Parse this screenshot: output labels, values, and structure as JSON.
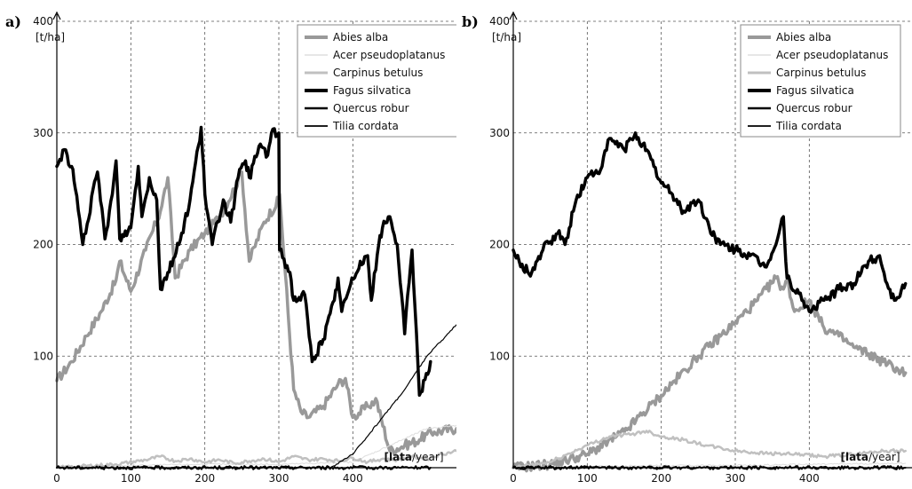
{
  "chart_data": [
    {
      "type": "line",
      "panel_label": "a)",
      "ylabel": "[t/ha]",
      "xlabel_bold": "[lata",
      "xlabel_rest": "/year]",
      "xlim": [
        0,
        540
      ],
      "ylim": [
        0,
        400
      ],
      "xticks": [
        0,
        100,
        200,
        300,
        400
      ],
      "yticks": [
        100,
        200,
        300,
        400
      ],
      "grid": true,
      "legend_position": "top-right",
      "series": [
        {
          "name": "Abies alba",
          "color": "#999999",
          "width": 3.5,
          "x": [
            0,
            20,
            40,
            60,
            80,
            85,
            100,
            120,
            140,
            150,
            160,
            180,
            200,
            220,
            240,
            250,
            260,
            280,
            300,
            301,
            320,
            330,
            340,
            360,
            380,
            390,
            400,
            420,
            430,
            431,
            450,
            470,
            490,
            500,
            510,
            540
          ],
          "y": [
            78,
            95,
            118,
            140,
            168,
            185,
            158,
            195,
            230,
            260,
            170,
            195,
            210,
            225,
            250,
            265,
            185,
            220,
            240,
            245,
            70,
            50,
            45,
            55,
            75,
            80,
            45,
            55,
            60,
            62,
            15,
            20,
            25,
            30,
            32,
            35
          ]
        },
        {
          "name": "Acer pseudoplatanus",
          "color": "#dddddd",
          "width": 1,
          "x": [
            0,
            100,
            200,
            300,
            400,
            450,
            500,
            540
          ],
          "y": [
            0,
            2,
            3,
            3,
            5,
            20,
            35,
            38
          ]
        },
        {
          "name": "Carpinus betulus",
          "color": "#c0c0c0",
          "width": 2.5,
          "x": [
            0,
            80,
            120,
            140,
            160,
            180,
            200,
            220,
            240,
            260,
            280,
            300,
            320,
            340,
            360,
            380,
            400,
            420,
            440,
            460,
            480,
            500,
            520,
            540
          ],
          "y": [
            0,
            3,
            7,
            10,
            6,
            8,
            5,
            7,
            4,
            6,
            8,
            5,
            10,
            7,
            8,
            6,
            9,
            5,
            8,
            7,
            10,
            8,
            12,
            15
          ]
        },
        {
          "name": "Fagus silvatica",
          "color": "#000000",
          "width": 3.5,
          "x": [
            0,
            10,
            20,
            25,
            35,
            55,
            65,
            75,
            80,
            85,
            100,
            110,
            115,
            125,
            135,
            140,
            150,
            165,
            180,
            195,
            200,
            210,
            225,
            235,
            245,
            255,
            260,
            275,
            285,
            290,
            300,
            301,
            315,
            320,
            335,
            345,
            360,
            375,
            380,
            385,
            395,
            410,
            420,
            425,
            435,
            440,
            450,
            460,
            470,
            480,
            490,
            505
          ],
          "y": [
            270,
            285,
            270,
            250,
            200,
            265,
            205,
            245,
            275,
            205,
            215,
            270,
            225,
            260,
            240,
            160,
            175,
            200,
            240,
            305,
            245,
            200,
            240,
            220,
            260,
            275,
            260,
            290,
            280,
            300,
            300,
            195,
            175,
            150,
            155,
            95,
            115,
            150,
            170,
            140,
            160,
            185,
            190,
            150,
            200,
            215,
            225,
            200,
            120,
            195,
            65,
            95
          ]
        },
        {
          "name": "Quercus robur",
          "color": "#000000",
          "width": 2,
          "x": [
            0,
            505
          ],
          "y": [
            0,
            0
          ]
        },
        {
          "name": "Tilia cordata",
          "color": "#000000",
          "width": 1.2,
          "x": [
            0,
            370,
            400,
            440,
            470,
            500,
            540
          ],
          "y": [
            0,
            0,
            12,
            45,
            70,
            100,
            128
          ]
        }
      ]
    },
    {
      "type": "line",
      "panel_label": "b)",
      "ylabel": "[t/ha]",
      "xlabel_bold": "[lata",
      "xlabel_rest": "/year]",
      "xlim": [
        0,
        540
      ],
      "ylim": [
        0,
        400
      ],
      "xticks": [
        0,
        100,
        200,
        300,
        400
      ],
      "yticks": [
        100,
        200,
        300,
        400
      ],
      "grid": true,
      "legend_position": "top-right",
      "series": [
        {
          "name": "Abies alba",
          "color": "#999999",
          "width": 3.5,
          "x": [
            0,
            50,
            100,
            150,
            200,
            250,
            300,
            330,
            355,
            365,
            370,
            380,
            400,
            420,
            440,
            460,
            480,
            500,
            520,
            530
          ],
          "y": [
            0,
            3,
            12,
            32,
            65,
            100,
            130,
            150,
            170,
            160,
            168,
            140,
            150,
            125,
            118,
            108,
            102,
            95,
            88,
            85
          ]
        },
        {
          "name": "Acer pseudoplatanus",
          "color": "#dddddd",
          "width": 1,
          "x": [
            0,
            100,
            200,
            300,
            400,
            530
          ],
          "y": [
            0,
            1,
            2,
            2,
            3,
            4
          ]
        },
        {
          "name": "Carpinus betulus",
          "color": "#c0c0c0",
          "width": 2.5,
          "x": [
            0,
            50,
            100,
            130,
            160,
            180,
            200,
            230,
            260,
            300,
            340,
            380,
            420,
            460,
            500,
            530
          ],
          "y": [
            0,
            5,
            20,
            28,
            30,
            33,
            28,
            25,
            20,
            15,
            13,
            12,
            10,
            12,
            15,
            15
          ]
        },
        {
          "name": "Fagus silvatica",
          "color": "#000000",
          "width": 3.5,
          "x": [
            0,
            10,
            25,
            40,
            60,
            70,
            85,
            100,
            120,
            130,
            150,
            165,
            175,
            190,
            200,
            215,
            230,
            250,
            265,
            280,
            300,
            320,
            340,
            355,
            365,
            370,
            390,
            400,
            420,
            440,
            460,
            480,
            495,
            505,
            515,
            530
          ],
          "y": [
            195,
            180,
            175,
            195,
            210,
            200,
            240,
            260,
            270,
            295,
            285,
            300,
            290,
            270,
            255,
            245,
            230,
            240,
            215,
            200,
            195,
            190,
            180,
            200,
            225,
            170,
            150,
            140,
            150,
            160,
            165,
            185,
            190,
            165,
            150,
            165
          ]
        },
        {
          "name": "Quercus robur",
          "color": "#000000",
          "width": 2,
          "x": [
            0,
            530
          ],
          "y": [
            0,
            0
          ]
        },
        {
          "name": "Tilia cordata",
          "color": "#000000",
          "width": 1.2,
          "x": [
            0,
            530
          ],
          "y": [
            0,
            0
          ]
        }
      ]
    }
  ]
}
